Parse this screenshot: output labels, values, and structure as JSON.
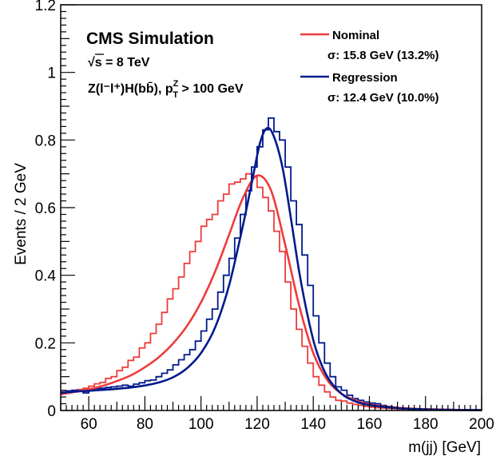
{
  "chart_data": {
    "type": "line",
    "title": "",
    "xlabel": "m(jj) [GeV]",
    "ylabel": "Events / 2 GeV",
    "xlim": [
      50,
      200
    ],
    "ylim": [
      0,
      1.2
    ],
    "grid": false,
    "legend_position": "top-right",
    "x_ticks": [
      "60",
      "80",
      "100",
      "120",
      "140",
      "160",
      "180",
      "200"
    ],
    "y_ticks": [
      "0",
      "0.2",
      "0.4",
      "0.6",
      "0.8",
      "1",
      "1.2"
    ],
    "annotations": {
      "experiment": "CMS Simulation",
      "energy": "√s = 8 TeV",
      "process": "Z(l⁻l⁺)H(bb̄), p",
      "pt_sup": "Z",
      "pt_sub": "T",
      "pt_cut": " > 100 GeV"
    },
    "bin_width": 2,
    "series": [
      {
        "name": "Nominal",
        "resolution": "σ: 15.8 GeV (13.2%)",
        "color": "#ee3b3b",
        "fit_peak_x": 120,
        "fit_peak_y": 0.695,
        "hist_values": [
          0.052,
          0.055,
          0.055,
          0.062,
          0.066,
          0.072,
          0.079,
          0.083,
          0.095,
          0.1,
          0.118,
          0.128,
          0.148,
          0.158,
          0.185,
          0.2,
          0.228,
          0.255,
          0.29,
          0.33,
          0.36,
          0.395,
          0.435,
          0.47,
          0.5,
          0.545,
          0.565,
          0.58,
          0.62,
          0.64,
          0.67,
          0.675,
          0.685,
          0.7,
          0.69,
          0.66,
          0.63,
          0.59,
          0.53,
          0.47,
          0.38,
          0.3,
          0.24,
          0.19,
          0.14,
          0.1,
          0.075,
          0.055,
          0.04,
          0.03,
          0.028,
          0.022,
          0.018,
          0.015,
          0.012,
          0.01,
          0.008,
          0.007,
          0.006,
          0.005,
          0.004,
          0.004,
          0.003,
          0.003,
          0.003,
          0.002,
          0.002,
          0.002,
          0.002,
          0.002,
          0.002,
          0.002,
          0.002,
          0.002,
          0.002
        ],
        "fit_points": [
          [
            50,
            0.048
          ],
          [
            55,
            0.055
          ],
          [
            60,
            0.063
          ],
          [
            65,
            0.073
          ],
          [
            70,
            0.087
          ],
          [
            75,
            0.104
          ],
          [
            80,
            0.128
          ],
          [
            85,
            0.158
          ],
          [
            90,
            0.198
          ],
          [
            95,
            0.25
          ],
          [
            100,
            0.32
          ],
          [
            105,
            0.41
          ],
          [
            110,
            0.52
          ],
          [
            115,
            0.63
          ],
          [
            120,
            0.695
          ],
          [
            125,
            0.65
          ],
          [
            130,
            0.49
          ],
          [
            135,
            0.31
          ],
          [
            140,
            0.17
          ],
          [
            145,
            0.09
          ],
          [
            150,
            0.05
          ],
          [
            155,
            0.03
          ],
          [
            160,
            0.018
          ],
          [
            170,
            0.008
          ],
          [
            180,
            0.004
          ],
          [
            190,
            0.002
          ],
          [
            200,
            0.001
          ]
        ]
      },
      {
        "name": "Regression",
        "resolution": "σ: 12.4 GeV (10.0%)",
        "color": "#001a8c",
        "fit_peak_x": 123.5,
        "fit_peak_y": 0.835,
        "hist_values": [
          0.055,
          0.058,
          0.06,
          0.058,
          0.052,
          0.062,
          0.065,
          0.066,
          0.068,
          0.07,
          0.072,
          0.075,
          0.072,
          0.078,
          0.082,
          0.088,
          0.09,
          0.1,
          0.11,
          0.12,
          0.135,
          0.15,
          0.165,
          0.18,
          0.205,
          0.235,
          0.27,
          0.3,
          0.35,
          0.4,
          0.45,
          0.51,
          0.58,
          0.65,
          0.72,
          0.78,
          0.83,
          0.865,
          0.825,
          0.8,
          0.72,
          0.62,
          0.55,
          0.46,
          0.37,
          0.28,
          0.2,
          0.14,
          0.1,
          0.07,
          0.06,
          0.045,
          0.035,
          0.03,
          0.025,
          0.022,
          0.02,
          0.015,
          0.012,
          0.01,
          0.008,
          0.007,
          0.006,
          0.005,
          0.005,
          0.004,
          0.004,
          0.003,
          0.003,
          0.003,
          0.002,
          0.002,
          0.002,
          0.002,
          0.002
        ],
        "fit_points": [
          [
            50,
            0.052
          ],
          [
            55,
            0.056
          ],
          [
            60,
            0.058
          ],
          [
            65,
            0.061
          ],
          [
            70,
            0.064
          ],
          [
            75,
            0.068
          ],
          [
            80,
            0.074
          ],
          [
            85,
            0.083
          ],
          [
            90,
            0.098
          ],
          [
            95,
            0.125
          ],
          [
            100,
            0.17
          ],
          [
            105,
            0.245
          ],
          [
            110,
            0.37
          ],
          [
            115,
            0.55
          ],
          [
            118,
            0.67
          ],
          [
            121,
            0.79
          ],
          [
            123.5,
            0.835
          ],
          [
            126,
            0.81
          ],
          [
            129,
            0.72
          ],
          [
            132,
            0.57
          ],
          [
            135,
            0.41
          ],
          [
            138,
            0.28
          ],
          [
            141,
            0.18
          ],
          [
            145,
            0.1
          ],
          [
            150,
            0.05
          ],
          [
            155,
            0.027
          ],
          [
            160,
            0.016
          ],
          [
            170,
            0.007
          ],
          [
            180,
            0.003
          ],
          [
            190,
            0.0015
          ],
          [
            200,
            0.001
          ]
        ]
      }
    ]
  }
}
